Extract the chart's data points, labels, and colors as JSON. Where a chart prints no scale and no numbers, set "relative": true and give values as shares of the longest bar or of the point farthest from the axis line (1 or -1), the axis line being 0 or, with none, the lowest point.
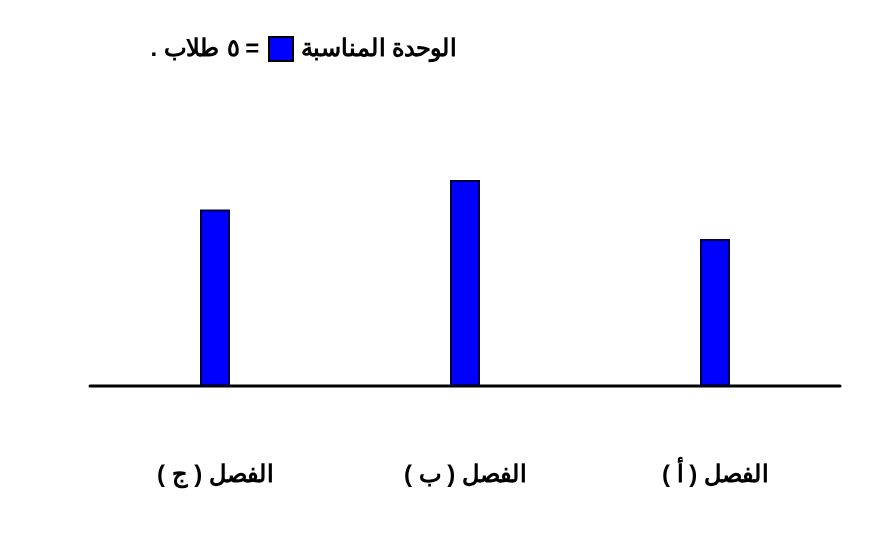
{
  "chart_data": {
    "type": "bar",
    "relative": true,
    "categories": [
      "الفصل ( ج )",
      "الفصل ( ب )",
      "الفصل ( أ )"
    ],
    "values": [
      0.857,
      1,
      0.714
    ],
    "color": "#0000ff",
    "annotations": [
      "الوحدة المناسبة",
      "= ٥ طلاب ."
    ]
  }
}
